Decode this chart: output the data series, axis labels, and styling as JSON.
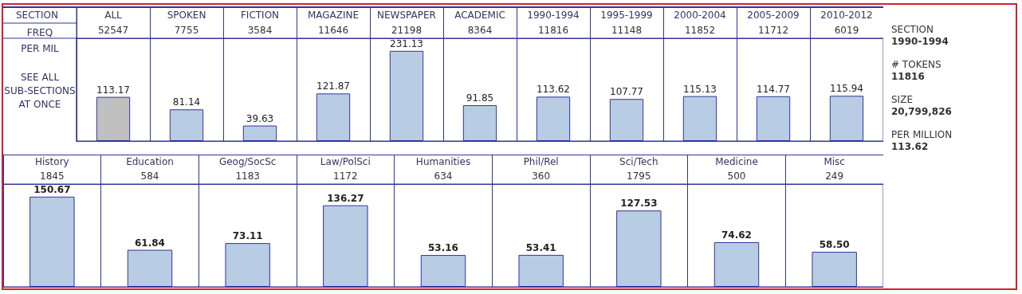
{
  "chart_data": [
    {
      "type": "bar",
      "xlabel": "SECTION",
      "categories": [
        "ALL",
        "SPOKEN",
        "FICTION",
        "MAGAZINE",
        "NEWSPAPER",
        "ACADEMIC",
        "1990-1994",
        "1995-1999",
        "2000-2004",
        "2005-2009",
        "2010-2012"
      ],
      "values": [
        113.17,
        81.14,
        39.63,
        121.87,
        231.13,
        91.85,
        113.62,
        107.77,
        115.13,
        114.77,
        115.94
      ],
      "colors": [
        "#c0c0c0",
        "#b8cce4",
        "#b8cce4",
        "#b8cce4",
        "#b8cce4",
        "#b8cce4",
        "#b8cce4",
        "#b8cce4",
        "#b8cce4",
        "#b8cce4",
        "#b8cce4"
      ],
      "data_labels": true,
      "annotations": [
        "FREQ",
        "PER MIL",
        "SEE ALL SUB-SECTIONS AT ONCE",
        "52547",
        "7755",
        "3584",
        "11646",
        "21198",
        "8364",
        "11816",
        "11148",
        "11852",
        "11712",
        "6019"
      ]
    },
    {
      "type": "bar",
      "categories": [
        "History",
        "Education",
        "Geog/SocSc",
        "Law/PolSci",
        "Humanities",
        "Phil/Rel",
        "Sci/Tech",
        "Medicine",
        "Misc"
      ],
      "values": [
        150.67,
        61.84,
        73.11,
        136.27,
        53.16,
        53.41,
        127.53,
        74.62,
        58.5
      ],
      "value_labels": [
        "150.67",
        "61.84",
        "73.11",
        "136.27",
        "53.16",
        "53.41",
        "127.53",
        "74.62",
        "58.50"
      ],
      "color": "#b8cce4",
      "annotations": [
        "1845",
        "584",
        "1183",
        "1172",
        "634",
        "360",
        "1795",
        "500",
        "249"
      ]
    },
    {
      "type": "other",
      "annotations": [
        "SECTION",
        "1990-1994",
        "# TOKENS",
        "11816",
        "SIZE",
        "20,799,826",
        "PER MILLION",
        "113.62"
      ]
    }
  ]
}
